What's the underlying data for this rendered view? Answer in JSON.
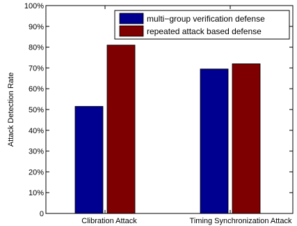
{
  "chart_data": {
    "type": "bar",
    "categories": [
      "Clibration Attack",
      "Timing Synchronization Attack"
    ],
    "series": [
      {
        "name": "multi−group verification defense",
        "color": "#000090",
        "values": [
          51.5,
          69.5
        ]
      },
      {
        "name": "repeated attack based defense",
        "color": "#7f0000",
        "values": [
          81,
          72
        ]
      }
    ],
    "ylabel": "Attack Detection Rate",
    "ylim": [
      0,
      100
    ],
    "yticks": [
      0,
      10,
      20,
      30,
      40,
      50,
      60,
      70,
      80,
      90,
      100
    ],
    "ytick_labels": [
      "0",
      "10%",
      "20%",
      "30%",
      "40%",
      "50%",
      "60%",
      "70%",
      "80%",
      "90%",
      "100%"
    ],
    "grid": false,
    "legend": "top-right"
  }
}
